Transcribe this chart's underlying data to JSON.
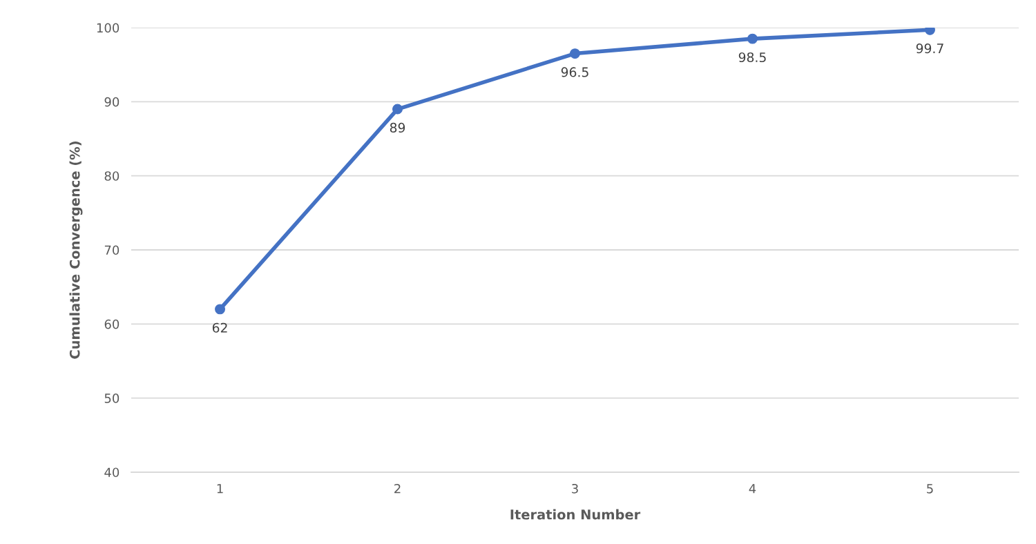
{
  "chart_data": {
    "type": "line",
    "xlabel": "Iteration Number",
    "ylabel": "Cumulative Convergence (%)",
    "categories": [
      "1",
      "2",
      "3",
      "4",
      "5"
    ],
    "series": [
      {
        "color": "#4472c4",
        "values": [
          62,
          89,
          96.5,
          98.5,
          99.7
        ]
      }
    ],
    "ylim": [
      40,
      100
    ],
    "yticks": [
      40,
      50,
      60,
      70,
      80,
      90,
      100
    ],
    "grid": "y",
    "marker": "circle",
    "line_style": "solid",
    "data_labels": true,
    "legend": false
  }
}
